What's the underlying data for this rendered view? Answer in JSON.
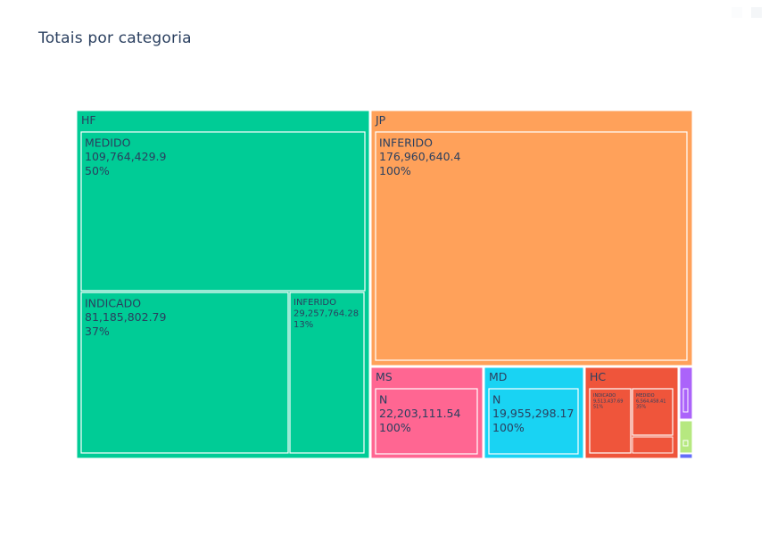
{
  "title": "Totais por categoria",
  "chart_data": {
    "type": "treemap",
    "title": "Totais por categoria",
    "colors": {
      "HF": "#00cc96",
      "JP": "#ffa15a",
      "MS": "#ff6692",
      "MD": "#19d3f3",
      "HC": "#ef553b",
      "small1": "#ab63fa",
      "small2": "#b6e880",
      "small3": "#636efa"
    },
    "groups": [
      {
        "name": "HF",
        "children": [
          {
            "name": "MEDIDO",
            "value": "109,764,429.9",
            "pct": "50%"
          },
          {
            "name": "INDICADO",
            "value": "81,185,802.79",
            "pct": "37%"
          },
          {
            "name": "INFERIDO",
            "value": "29,257,764.28",
            "pct": "13%"
          }
        ]
      },
      {
        "name": "JP",
        "children": [
          {
            "name": "INFERIDO",
            "value": "176,960,640.4",
            "pct": "100%"
          }
        ]
      },
      {
        "name": "MS",
        "children": [
          {
            "name": "N",
            "value": "22,203,111.54",
            "pct": "100%"
          }
        ]
      },
      {
        "name": "MD",
        "children": [
          {
            "name": "N",
            "value": "19,955,298.17",
            "pct": "100%"
          }
        ]
      },
      {
        "name": "HC",
        "children": [
          {
            "name": "INDICADO",
            "value": "9,513,437.69",
            "pct": "51%"
          },
          {
            "name": "MEDIDO",
            "value": "6,564,458.41",
            "pct": "35%"
          },
          {
            "name": "",
            "value": "",
            "pct": ""
          }
        ]
      }
    ]
  }
}
